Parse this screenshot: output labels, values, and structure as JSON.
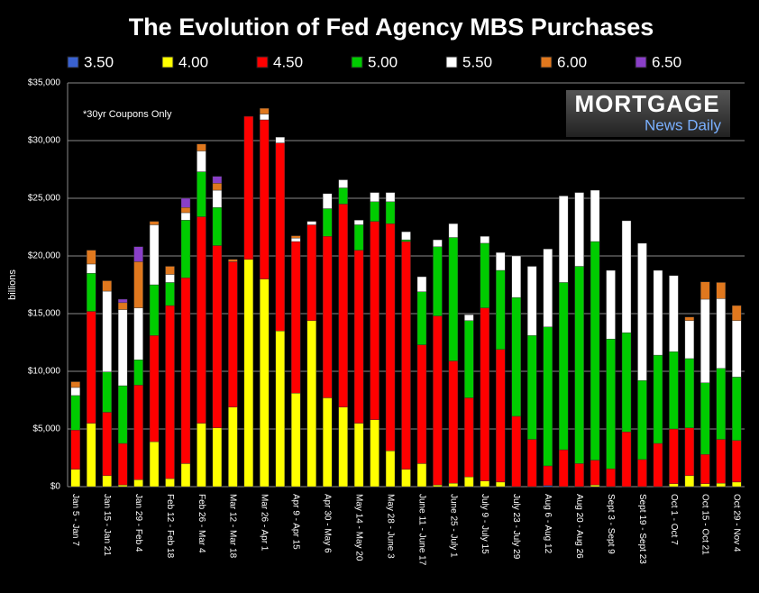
{
  "chart_data": {
    "type": "stacked-bar",
    "title": "The Evolution of Fed Agency MBS Purchases",
    "y_label": "billions",
    "annotations": [
      "*30yr Coupons Only",
      "MORTGAGE",
      "News Daily"
    ],
    "categories": [
      "Jan 5 - Jan 7",
      null,
      "Jan 15 - Jan 21",
      null,
      "Jan 29 - Feb 4",
      null,
      "Feb 12 - Feb 18",
      null,
      "Feb 26 - Mar 4",
      null,
      "Mar 12 - Mar 18",
      null,
      "Mar 26 - Apr 1",
      null,
      "Apr 9 - Apr 15",
      null,
      "Apr 30 - May 6",
      null,
      "May 14 - May 20",
      null,
      "May 28 - June 3",
      null,
      "June 11 - June 17",
      null,
      "June 25 - July 1",
      null,
      "July 9 - July 15",
      null,
      "July 23 - July 29",
      null,
      "Aug 6 - Aug 12",
      null,
      "Aug 20 - Aug 26",
      null,
      "Sept 3 - Sept 9",
      null,
      "Sept 19 - Sept 23",
      null,
      "Oct 1 - Oct 7",
      null,
      "Oct 15 - Oct 21",
      null,
      "Oct 29 - Nov 4"
    ],
    "series": [
      {
        "name": "3.50",
        "color": "#3a62d0",
        "values": [
          0,
          0,
          0,
          0,
          0,
          0,
          0,
          0,
          0,
          0,
          0,
          0,
          0,
          0,
          0,
          0,
          0,
          0,
          0,
          0,
          0,
          0,
          0,
          0,
          0,
          0,
          0,
          0,
          0,
          0,
          100,
          0,
          0,
          0,
          0,
          0,
          0,
          0,
          0,
          0,
          0,
          0,
          0
        ]
      },
      {
        "name": "4.00",
        "color": "#ffff00",
        "values": [
          1500,
          5500,
          950,
          150,
          600,
          3900,
          700,
          2000,
          5500,
          5100,
          6900,
          19700,
          18000,
          13500,
          8100,
          14400,
          7700,
          6900,
          5500,
          5800,
          3100,
          1500,
          2000,
          150,
          300,
          850,
          500,
          400,
          0,
          0,
          0,
          0,
          0,
          150,
          0,
          0,
          0,
          0,
          250,
          950,
          250,
          300,
          400
        ]
      },
      {
        "name": "4.50",
        "color": "#ff0000",
        "values": [
          3400,
          9700,
          5500,
          3600,
          8200,
          9200,
          15000,
          16100,
          17900,
          15800,
          12600,
          12400,
          13800,
          16300,
          13150,
          8300,
          14000,
          17600,
          15000,
          17200,
          19700,
          19750,
          10300,
          14650,
          10600,
          6850,
          15000,
          11500,
          6100,
          4100,
          1700,
          3200,
          2000,
          2150,
          1550,
          4750,
          2350,
          3750,
          4750,
          4150,
          2550,
          3800,
          3600
        ]
      },
      {
        "name": "5.00",
        "color": "#00cc00",
        "values": [
          3000,
          3300,
          3500,
          5000,
          2200,
          4400,
          2000,
          5000,
          3900,
          3300,
          0,
          0,
          0,
          0,
          0,
          0,
          2400,
          1400,
          2200,
          1700,
          1900,
          150,
          4600,
          6000,
          10700,
          6700,
          5600,
          6850,
          10300,
          9000,
          12050,
          14500,
          17100,
          18950,
          11250,
          8600,
          6850,
          7650,
          6700,
          6000,
          6200,
          6150,
          5500
        ]
      },
      {
        "name": "5.50",
        "color": "#ffffff",
        "values": [
          700,
          800,
          7000,
          6600,
          4500,
          5200,
          700,
          650,
          1800,
          1500,
          0,
          0,
          500,
          500,
          300,
          300,
          1300,
          700,
          400,
          800,
          800,
          700,
          1300,
          600,
          1200,
          500,
          600,
          1550,
          3600,
          6000,
          6750,
          7500,
          6400,
          4450,
          5950,
          9700,
          11900,
          7350,
          6600,
          3300,
          7250,
          6050,
          4900
        ]
      },
      {
        "name": "6.00",
        "color": "#e0781e",
        "values": [
          500,
          1200,
          900,
          600,
          4000,
          300,
          700,
          450,
          600,
          600,
          200,
          0,
          500,
          0,
          200,
          0,
          0,
          0,
          0,
          0,
          0,
          0,
          0,
          0,
          0,
          0,
          0,
          0,
          0,
          0,
          0,
          0,
          0,
          0,
          0,
          0,
          0,
          0,
          0,
          300,
          1500,
          1400,
          1300
        ]
      },
      {
        "name": "6.50",
        "color": "#8a3fc8",
        "values": [
          0,
          0,
          0,
          300,
          1300,
          0,
          0,
          800,
          0,
          600,
          0,
          0,
          0,
          0,
          0,
          0,
          0,
          0,
          0,
          0,
          0,
          0,
          0,
          0,
          0,
          0,
          0,
          0,
          0,
          0,
          0,
          0,
          0,
          0,
          0,
          0,
          0,
          0,
          0,
          0,
          0,
          0,
          0
        ]
      }
    ],
    "ylim": [
      0,
      35000
    ],
    "yticks": [
      {
        "value": 0,
        "label": "$0"
      },
      {
        "value": 5000,
        "label": "$5,000"
      },
      {
        "value": 10000,
        "label": "$10,000"
      },
      {
        "value": 15000,
        "label": "$15,000"
      },
      {
        "value": 20000,
        "label": "$20,000"
      },
      {
        "value": 25000,
        "label": "$25,000"
      },
      {
        "value": 30000,
        "label": "$30,000"
      },
      {
        "value": 35000,
        "label": "$35,000"
      }
    ],
    "grid": true,
    "legend": "top"
  }
}
